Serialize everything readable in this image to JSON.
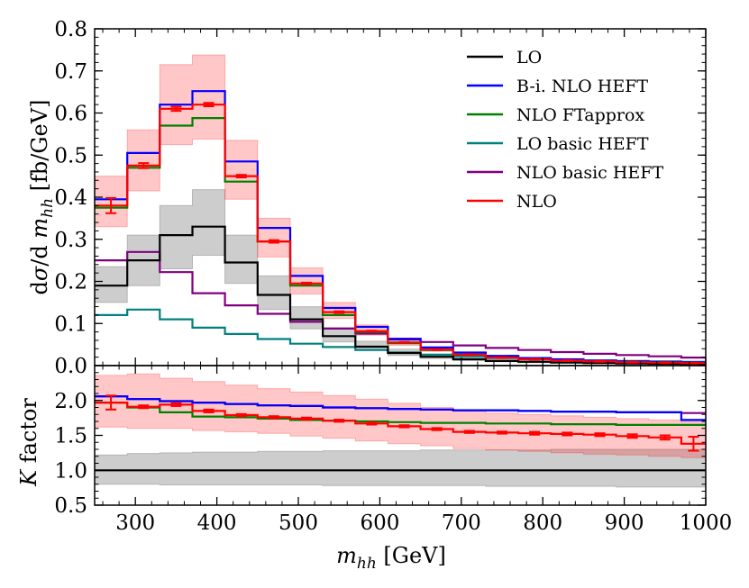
{
  "chart_data": {
    "type": "line",
    "style": "step-histogram",
    "bin_edges": [
      250,
      290,
      330,
      370,
      410,
      450,
      490,
      530,
      570,
      610,
      650,
      690,
      730,
      770,
      810,
      850,
      890,
      930,
      970,
      1000
    ],
    "xlabel": "m_hh [GeV]",
    "xlim": [
      250,
      1000
    ],
    "xticks": [
      "300",
      "400",
      "500",
      "600",
      "700",
      "800",
      "900",
      "1000"
    ],
    "legend_position": "top-right",
    "panels": [
      {
        "id": "top",
        "ylabel": "dσ/d m_hh [fb/GeV]",
        "ylim": [
          0,
          0.8
        ],
        "yticks": [
          "0.0",
          "0.1",
          "0.2",
          "0.3",
          "0.4",
          "0.5",
          "0.6",
          "0.7",
          "0.8"
        ],
        "series": [
          {
            "name": "LO basic HEFT",
            "color": "#008080",
            "values": [
              0.12,
              0.133,
              0.11,
              0.09,
              0.075,
              0.063,
              0.052,
              0.044,
              0.037,
              0.031,
              0.026,
              0.022,
              0.018,
              0.016,
              0.014,
              0.012,
              0.011,
              0.01,
              0.009
            ]
          },
          {
            "name": "NLO basic HEFT",
            "color": "#800080",
            "values": [
              0.25,
              0.27,
              0.222,
              0.172,
              0.143,
              0.123,
              0.104,
              0.088,
              0.076,
              0.064,
              0.056,
              0.048,
              0.042,
              0.037,
              0.032,
              0.028,
              0.025,
              0.022,
              0.019
            ]
          },
          {
            "name": "NLO FTapprox",
            "color": "#008000",
            "values": [
              0.375,
              0.47,
              0.57,
              0.588,
              0.437,
              0.295,
              0.19,
              0.12,
              0.08,
              0.053,
              0.037,
              0.026,
              0.02,
              0.016,
              0.013,
              0.011,
              0.009,
              0.008,
              0.007
            ]
          },
          {
            "name": "B-i. NLO HEFT",
            "color": "#0000ff",
            "values": [
              0.395,
              0.505,
              0.62,
              0.652,
              0.485,
              0.327,
              0.213,
              0.137,
              0.092,
              0.062,
              0.043,
              0.031,
              0.023,
              0.018,
              0.015,
              0.012,
              0.01,
              0.009,
              0.008
            ]
          },
          {
            "name": "LO",
            "color": "#000000",
            "values": [
              0.19,
              0.25,
              0.31,
              0.33,
              0.245,
              0.168,
              0.11,
              0.07,
              0.045,
              0.03,
              0.021,
              0.015,
              0.011,
              0.009,
              0.007,
              0.006,
              0.005,
              0.0045,
              0.004
            ],
            "band_low": [
              0.15,
              0.19,
              0.23,
              0.262,
              0.195,
              0.133,
              0.087,
              0.056,
              0.036,
              0.024,
              0.017,
              0.012,
              0.009,
              0.007,
              0.0055,
              0.0045,
              0.004,
              0.0035,
              0.003
            ],
            "band_high": [
              0.235,
              0.31,
              0.38,
              0.418,
              0.31,
              0.213,
              0.14,
              0.09,
              0.058,
              0.039,
              0.027,
              0.019,
              0.014,
              0.011,
              0.009,
              0.0075,
              0.0065,
              0.0055,
              0.005
            ],
            "band_color": "#888888"
          },
          {
            "name": "NLO",
            "color": "#ff0000",
            "values": [
              0.38,
              0.475,
              0.61,
              0.62,
              0.45,
              0.295,
              0.195,
              0.127,
              0.082,
              0.055,
              0.038,
              0.026,
              0.019,
              0.015,
              0.012,
              0.01,
              0.008,
              0.007,
              0.006
            ],
            "errors": [
              0.018,
              0.006,
              0.005,
              0.004,
              0.003,
              0.003,
              0.002,
              0.002,
              0.001,
              0.001,
              0.001,
              0.001,
              0.001,
              0.001,
              0.001,
              0.001,
              0.001,
              0.001,
              0.001
            ],
            "band_low": [
              0.33,
              0.415,
              0.525,
              0.538,
              0.395,
              0.258,
              0.17,
              0.112,
              0.072,
              0.048,
              0.034,
              0.023,
              0.017,
              0.013,
              0.011,
              0.009,
              0.007,
              0.006,
              0.005
            ],
            "band_high": [
              0.45,
              0.56,
              0.715,
              0.738,
              0.535,
              0.35,
              0.232,
              0.15,
              0.097,
              0.065,
              0.045,
              0.031,
              0.022,
              0.018,
              0.014,
              0.012,
              0.0095,
              0.0083,
              0.0072
            ],
            "band_color": "#ff0000"
          }
        ]
      },
      {
        "id": "bottom",
        "ylabel": "K factor",
        "ylim": [
          0.5,
          2.5
        ],
        "yticks": [
          "0.5",
          "1.0",
          "1.5",
          "2.0"
        ],
        "series": [
          {
            "name": "LO",
            "color": "#000000",
            "values": [
              1,
              1,
              1,
              1,
              1,
              1,
              1,
              1,
              1,
              1,
              1,
              1,
              1,
              1,
              1,
              1,
              1,
              1,
              1
            ],
            "band_low": [
              0.8,
              0.8,
              0.79,
              0.79,
              0.79,
              0.79,
              0.79,
              0.78,
              0.78,
              0.78,
              0.78,
              0.78,
              0.77,
              0.77,
              0.77,
              0.77,
              0.76,
              0.76,
              0.76
            ],
            "band_high": [
              1.22,
              1.24,
              1.25,
              1.26,
              1.26,
              1.27,
              1.27,
              1.28,
              1.28,
              1.28,
              1.29,
              1.29,
              1.29,
              1.29,
              1.3,
              1.3,
              1.3,
              1.3,
              1.3
            ],
            "band_color": "#888888"
          },
          {
            "name": "NLO basic HEFT",
            "color": "#800080",
            "values": [
              2.06,
              2.02,
              1.99,
              1.97,
              1.95,
              1.93,
              1.92,
              1.9,
              1.89,
              1.88,
              1.87,
              1.86,
              1.86,
              1.85,
              1.84,
              1.84,
              1.83,
              1.83,
              1.82
            ]
          },
          {
            "name": "B-i. NLO HEFT",
            "color": "#0000ff",
            "values": [
              2.06,
              2.02,
              1.99,
              1.97,
              1.95,
              1.93,
              1.92,
              1.9,
              1.89,
              1.88,
              1.87,
              1.86,
              1.86,
              1.85,
              1.84,
              1.84,
              1.83,
              1.83,
              1.72
            ]
          },
          {
            "name": "NLO FTapprox",
            "color": "#008000",
            "values": [
              1.97,
              1.9,
              1.83,
              1.77,
              1.76,
              1.74,
              1.72,
              1.71,
              1.7,
              1.69,
              1.68,
              1.68,
              1.67,
              1.67,
              1.66,
              1.66,
              1.65,
              1.65,
              1.65
            ]
          },
          {
            "name": "NLO",
            "color": "#ff0000",
            "values": [
              1.97,
              1.91,
              1.94,
              1.85,
              1.79,
              1.76,
              1.74,
              1.71,
              1.67,
              1.63,
              1.59,
              1.55,
              1.54,
              1.53,
              1.52,
              1.51,
              1.49,
              1.47,
              1.38
            ],
            "errors": [
              0.1,
              0.02,
              0.02,
              0.02,
              0.015,
              0.015,
              0.015,
              0.015,
              0.015,
              0.015,
              0.015,
              0.015,
              0.015,
              0.02,
              0.02,
              0.02,
              0.025,
              0.03,
              0.1
            ],
            "band_low": [
              1.62,
              1.6,
              1.6,
              1.57,
              1.55,
              1.53,
              1.49,
              1.46,
              1.42,
              1.38,
              1.35,
              1.31,
              1.29,
              1.27,
              1.25,
              1.23,
              1.22,
              1.2,
              1.18
            ],
            "band_high": [
              2.36,
              2.38,
              2.32,
              2.27,
              2.22,
              2.17,
              2.12,
              2.07,
              2.02,
              1.96,
              1.9,
              1.85,
              1.82,
              1.8,
              1.78,
              1.76,
              1.74,
              1.72,
              1.7
            ],
            "band_color": "#ff0000"
          }
        ]
      }
    ],
    "legend_order": [
      "LO",
      "B-i. NLO HEFT",
      "NLO FTapprox",
      "LO basic HEFT",
      "NLO basic HEFT",
      "NLO"
    ]
  }
}
